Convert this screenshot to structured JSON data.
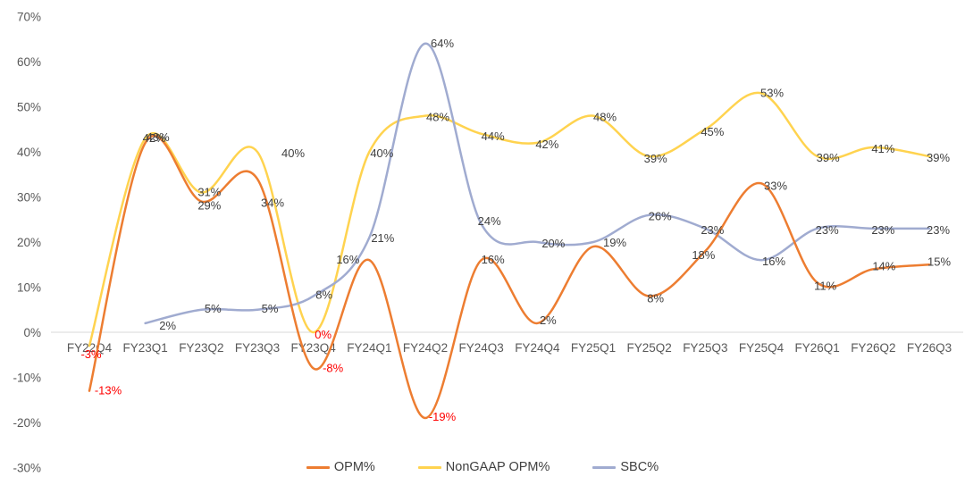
{
  "chart_data": {
    "type": "line",
    "title": "",
    "categories": [
      "FY22Q4",
      "FY23Q1",
      "FY23Q2",
      "FY23Q3",
      "FY23Q4",
      "FY24Q1",
      "FY24Q2",
      "FY24Q3",
      "FY24Q4",
      "FY25Q1",
      "FY25Q2",
      "FY25Q3",
      "FY25Q4",
      "FY26Q1",
      "FY26Q2",
      "FY26Q3"
    ],
    "y_axis": {
      "min": -30,
      "max": 70,
      "step": 10,
      "format": "percent",
      "tick_labels": [
        "70%",
        "60%",
        "50%",
        "40%",
        "30%",
        "20%",
        "10%",
        "0%",
        "-10%",
        "-20%",
        "-30%"
      ]
    },
    "grid": false,
    "legend_position": "bottom",
    "series": [
      {
        "name": "OPM%",
        "color": "#ED7D31",
        "values": [
          -13,
          42,
          29,
          34,
          -8,
          16,
          -19,
          16,
          2,
          19,
          8,
          18,
          33,
          11,
          14,
          15
        ],
        "data_labels": [
          "-13%",
          "42%",
          "29%",
          "34%",
          "-8%",
          "16%",
          "-19%",
          "16%",
          "2%",
          "19%",
          "8%",
          "18%",
          "33%",
          "11%",
          "14%",
          "15%"
        ]
      },
      {
        "name": "NonGAAP OPM%",
        "color": "#FFD34F",
        "values": [
          -3,
          43,
          31,
          40,
          0,
          40,
          48,
          44,
          42,
          48,
          39,
          45,
          53,
          39,
          41,
          39
        ],
        "data_labels": [
          "-3%",
          "43%",
          "31%",
          "40%",
          "0%",
          "40%",
          "48%",
          "44%",
          "42%",
          "48%",
          "39%",
          "45%",
          "53%",
          "39%",
          "41%",
          "39%"
        ]
      },
      {
        "name": "SBC%",
        "color": "#A0ABD0",
        "values": [
          null,
          2,
          5,
          5,
          8,
          21,
          64,
          24,
          20,
          20,
          26,
          23,
          16,
          23,
          23,
          23
        ],
        "data_labels": [
          "",
          "2%",
          "5%",
          "5%",
          "8%",
          "21%",
          "64%",
          "24%",
          "20%",
          "",
          "26%",
          "23%",
          "16%",
          "23%",
          "23%",
          "23%"
        ]
      }
    ],
    "styles": {
      "label_color": "#404040",
      "negative_label_color": "#FF0000",
      "axis_text_color": "#595959",
      "axis_line_color": "#D9D9D9"
    }
  }
}
